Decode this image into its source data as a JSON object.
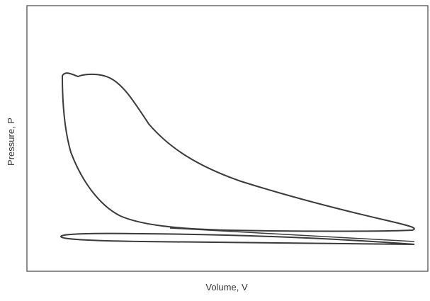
{
  "axes": {
    "x_label": "Volume, V",
    "y_label": "Pressure, P"
  }
}
